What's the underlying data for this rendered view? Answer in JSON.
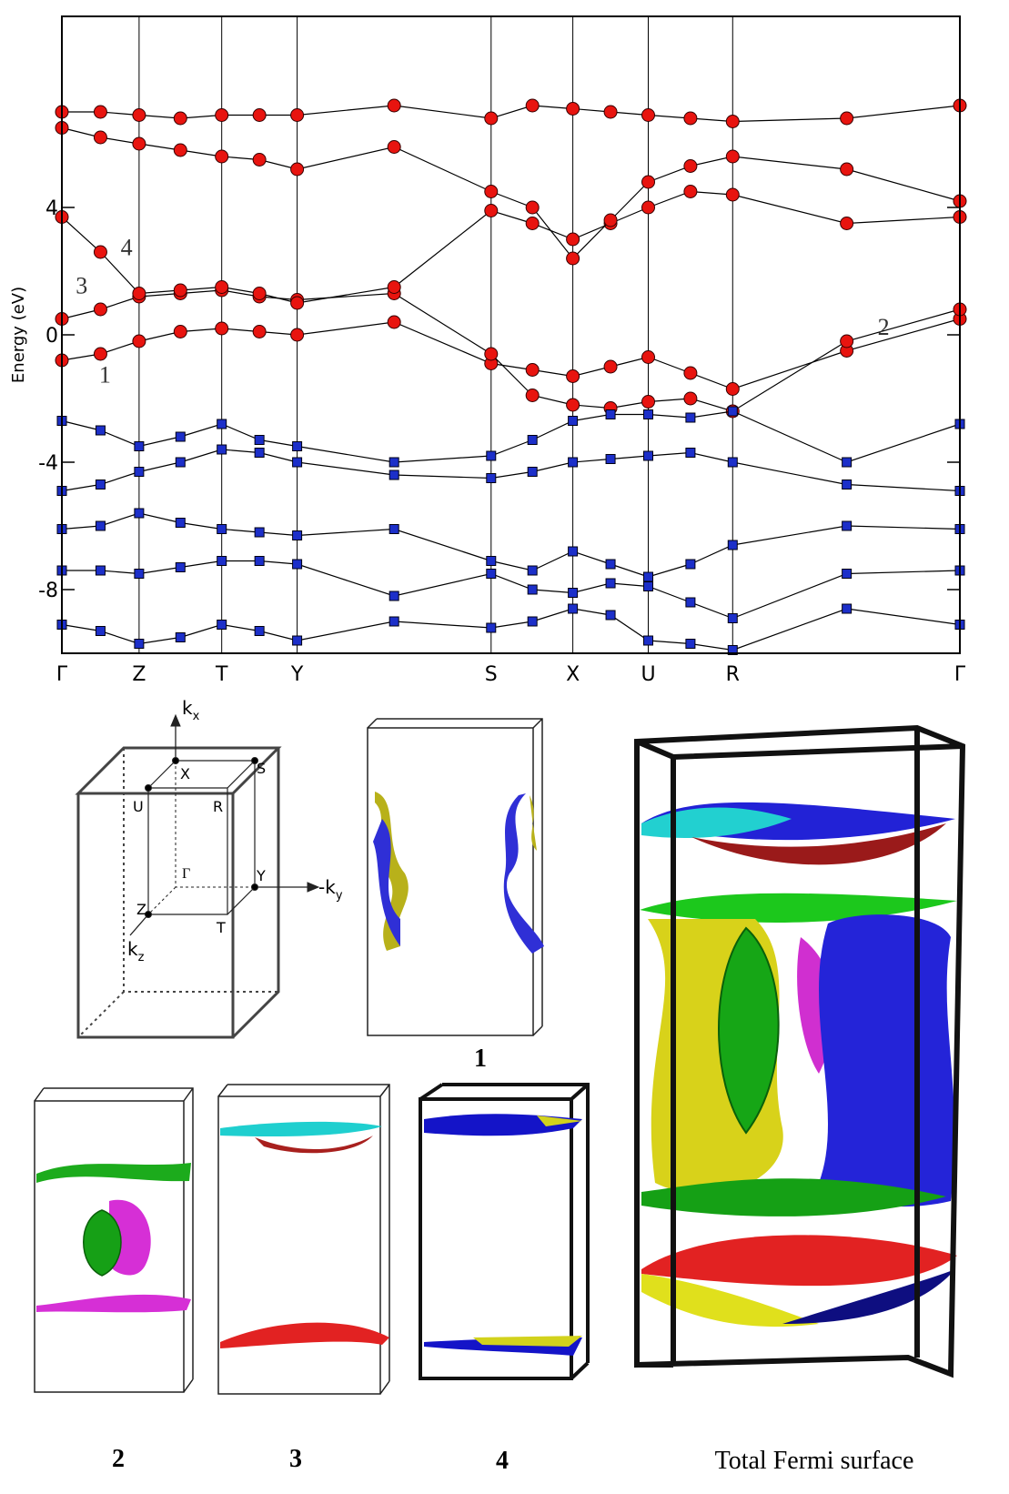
{
  "chart_data": {
    "type": "line",
    "ylabel": "Energy (eV)",
    "ylim": [
      -10,
      10
    ],
    "yticks": [
      -8,
      -4,
      0,
      4
    ],
    "xlim": [
      0,
      1
    ],
    "xticks": [
      {
        "value": 0,
        "label": "Γ"
      },
      {
        "value": 0.086,
        "label": "Z"
      },
      {
        "value": 0.178,
        "label": "T"
      },
      {
        "value": 0.262,
        "label": "Y"
      },
      {
        "value": 0.478,
        "label": "S"
      },
      {
        "value": 0.569,
        "label": "X"
      },
      {
        "value": 0.653,
        "label": "U"
      },
      {
        "value": 0.747,
        "label": "R"
      },
      {
        "value": 1,
        "label": "Γ"
      }
    ],
    "grid": true,
    "x": [
      0,
      0.043,
      0.086,
      0.132,
      0.178,
      0.22,
      0.262,
      0.37,
      0.478,
      0.524,
      0.569,
      0.611,
      0.653,
      0.7,
      0.747,
      0.874,
      1
    ],
    "series": [
      {
        "color": "#e8140f",
        "marker": "circle",
        "values": [
          -0.8,
          -0.6,
          -0.2,
          0.1,
          0.2,
          0.1,
          0.0,
          0.4,
          -0.9,
          -1.1,
          -1.3,
          -1.0,
          -0.7,
          -1.2,
          -1.7,
          -0.5,
          0.5
        ]
      },
      {
        "color": "#e8140f",
        "marker": "circle",
        "values": [
          0.5,
          0.8,
          1.2,
          1.3,
          1.4,
          1.2,
          1.1,
          1.3,
          -0.6,
          -1.9,
          -2.2,
          -2.3,
          -2.1,
          -2.0,
          -2.4,
          -0.2,
          0.8
        ]
      },
      {
        "color": "#e8140f",
        "marker": "circle",
        "values": [
          3.7,
          2.6,
          1.3,
          1.4,
          1.5,
          1.3,
          1.0,
          1.5,
          3.9,
          3.5,
          3.0,
          3.5,
          4.0,
          4.5,
          4.4,
          3.5,
          3.7
        ]
      },
      {
        "color": "#e8140f",
        "marker": "circle",
        "values": [
          6.5,
          6.2,
          6.0,
          5.8,
          5.6,
          5.5,
          5.2,
          5.9,
          4.5,
          4.0,
          2.4,
          3.6,
          4.8,
          5.3,
          5.6,
          5.2,
          4.2
        ]
      },
      {
        "color": "#e8140f",
        "marker": "circle",
        "values": [
          7.0,
          7.0,
          6.9,
          6.8,
          6.9,
          6.9,
          6.9,
          7.2,
          6.8,
          7.2,
          7.1,
          7.0,
          6.9,
          6.8,
          6.7,
          6.8,
          7.2
        ]
      },
      {
        "color": "#1c2fc9",
        "marker": "square",
        "values": [
          -2.7,
          -3.0,
          -3.5,
          -3.2,
          -2.8,
          -3.3,
          -3.5,
          -4.0,
          -3.8,
          -3.3,
          -2.7,
          -2.5,
          -2.5,
          -2.6,
          -2.4,
          -4.0,
          -2.8
        ]
      },
      {
        "color": "#1c2fc9",
        "marker": "square",
        "values": [
          -4.9,
          -4.7,
          -4.3,
          -4.0,
          -3.6,
          -3.7,
          -4.0,
          -4.4,
          -4.5,
          -4.3,
          -4.0,
          -3.9,
          -3.8,
          -3.7,
          -4.0,
          -4.7,
          -4.9
        ]
      },
      {
        "color": "#1c2fc9",
        "marker": "square",
        "values": [
          -6.1,
          -6.0,
          -5.6,
          -5.9,
          -6.1,
          -6.2,
          -6.3,
          -6.1,
          -7.1,
          -7.4,
          -6.8,
          -7.2,
          -7.6,
          -7.2,
          -6.6,
          -6.0,
          -6.1
        ]
      },
      {
        "color": "#1c2fc9",
        "marker": "square",
        "values": [
          -7.4,
          -7.4,
          -7.5,
          -7.3,
          -7.1,
          -7.1,
          -7.2,
          -8.2,
          -7.5,
          -8.0,
          -8.1,
          -7.8,
          -7.9,
          -8.4,
          -8.9,
          -7.5,
          -7.4
        ]
      },
      {
        "color": "#1c2fc9",
        "marker": "square",
        "values": [
          -9.1,
          -9.3,
          -9.7,
          -9.5,
          -9.1,
          -9.3,
          -9.6,
          -9.0,
          -9.2,
          -9.0,
          -8.6,
          -8.8,
          -9.6,
          -9.7,
          -9.9,
          -8.6,
          -9.1
        ]
      }
    ],
    "annotations": [
      {
        "text": "1",
        "x": 0.048,
        "y": -1.5
      },
      {
        "text": "2",
        "x": 0.915,
        "y": 0
      },
      {
        "text": "3",
        "x": 0.022,
        "y": 1.3
      },
      {
        "text": "4",
        "x": 0.072,
        "y": 2.5
      }
    ]
  },
  "brillouin_zone": {
    "labels": {
      "X": "X",
      "S": "S",
      "U": "U",
      "R": "R",
      "Gamma": "Γ",
      "Y": "Y",
      "Z": "Z",
      "T": "T"
    },
    "kx": {
      "base": "k",
      "sub": "x"
    },
    "ky": {
      "base": "-k",
      "sub": "y"
    },
    "kz": {
      "base": "k",
      "sub": "z"
    }
  },
  "panels": {
    "p1": "1",
    "p2": "2",
    "p3": "3",
    "p4": "4",
    "total": "Total Fermi surface"
  }
}
